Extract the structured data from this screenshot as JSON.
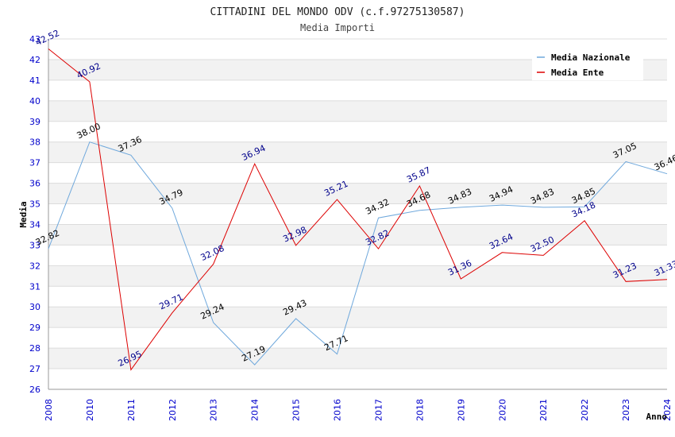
{
  "chart_data": {
    "type": "line",
    "title": "CITTADINI DEL MONDO ODV (c.f.97275130587)",
    "subtitle": "Media Importi",
    "xlabel": "Anno",
    "ylabel": "Media",
    "ylim": [
      26,
      43
    ],
    "yticks": [
      "26",
      "27",
      "28",
      "29",
      "30",
      "31",
      "32",
      "33",
      "34",
      "35",
      "36",
      "37",
      "38",
      "39",
      "40",
      "41",
      "42",
      "43"
    ],
    "categories": [
      "2008",
      "2010",
      "2011",
      "2012",
      "2013",
      "2014",
      "2015",
      "2016",
      "2017",
      "2018",
      "2019",
      "2020",
      "2021",
      "2022",
      "2023",
      "2024"
    ],
    "series": [
      {
        "name": "Media Nazionale",
        "color": "#6fa8dc",
        "values": [
          32.82,
          38.0,
          37.36,
          34.79,
          29.24,
          27.19,
          29.43,
          27.71,
          34.32,
          34.68,
          34.83,
          34.94,
          34.83,
          34.85,
          37.05,
          36.46
        ],
        "labels": [
          "32.82",
          "38.00",
          "37.36",
          "34.79",
          "29.24",
          "27.19",
          "29.43",
          "27.71",
          "34.32",
          "34.68",
          "34.83",
          "34.94",
          "34.83",
          "34.85",
          "37.05",
          "36.46"
        ]
      },
      {
        "name": "Media Ente",
        "color": "#dd0000",
        "values": [
          42.52,
          40.92,
          26.95,
          29.71,
          32.08,
          36.94,
          32.98,
          35.21,
          32.82,
          35.87,
          31.36,
          32.64,
          32.5,
          34.18,
          31.23,
          31.33
        ],
        "labels": [
          "42.52",
          "40.92",
          "26.95",
          "29.71",
          "32.08",
          "36.94",
          "32.98",
          "35.21",
          "32.82",
          "35.87",
          "31.36",
          "32.64",
          "32.50",
          "34.18",
          "31.23",
          "31.33"
        ]
      }
    ],
    "legend_position": "top-right",
    "grid": true
  }
}
